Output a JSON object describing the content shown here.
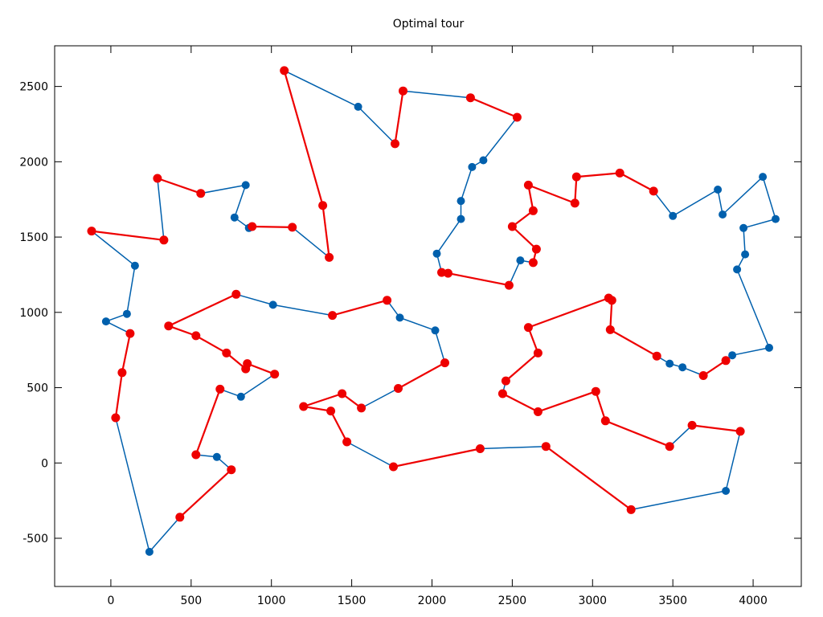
{
  "chart_data": {
    "type": "line",
    "title": "Optimal tour",
    "xlabel": "",
    "ylabel": "",
    "xlim": [
      -350,
      4300
    ],
    "ylim": [
      -820,
      2770
    ],
    "xticks": [
      0,
      500,
      1000,
      1500,
      2000,
      2500,
      3000,
      3500,
      4000
    ],
    "yticks": [
      -500,
      0,
      500,
      1000,
      1500,
      2000,
      2500
    ],
    "grid": false,
    "legend": "none",
    "colors": {
      "blue": "#0060ad",
      "red": "#ee0000"
    },
    "series": [
      {
        "color": "blue",
        "x": [
          330,
          -120,
          150,
          100,
          -30,
          120,
          70,
          30,
          240,
          430,
          750,
          660,
          530,
          680,
          810,
          1020,
          850,
          840,
          720,
          530,
          360,
          780,
          1010,
          1380,
          1720,
          1800,
          2020,
          2080,
          1790,
          1560,
          1440,
          1200,
          1370,
          1470,
          1760,
          2300,
          2710,
          3240,
          3830,
          3920,
          3620,
          3480,
          3080,
          3020,
          2660,
          2440,
          2460,
          2660,
          2600,
          3100,
          3120,
          3110,
          3400,
          3480,
          3560,
          3690,
          3830,
          3870,
          4100,
          3900,
          3950,
          3940,
          4140,
          4060,
          3810,
          3780,
          3500,
          3380,
          3170,
          2900,
          2890,
          2600,
          2630,
          2500,
          2650,
          2630,
          2550,
          2480,
          2100,
          2060,
          2030,
          2180,
          2180,
          2250,
          2320,
          2530,
          2240,
          1820,
          1770,
          1540,
          1080,
          1320,
          1360,
          1130,
          880,
          860,
          770,
          840,
          560,
          290,
          330
        ],
        "y": [
          1480,
          1540,
          1310,
          990,
          940,
          860,
          600,
          300,
          -590,
          -360,
          -45,
          40,
          55,
          490,
          440,
          590,
          660,
          625,
          730,
          845,
          910,
          1120,
          1050,
          980,
          1080,
          965,
          880,
          665,
          495,
          365,
          460,
          375,
          345,
          140,
          -25,
          95,
          110,
          -310,
          -185,
          210,
          250,
          110,
          280,
          475,
          340,
          460,
          545,
          730,
          900,
          1095,
          1080,
          885,
          710,
          660,
          635,
          580,
          680,
          715,
          765,
          1285,
          1385,
          1560,
          1620,
          1900,
          1650,
          1815,
          1640,
          1805,
          1925,
          1900,
          1725,
          1845,
          1675,
          1570,
          1420,
          1330,
          1345,
          1180,
          1260,
          1265,
          1390,
          1620,
          1740,
          1965,
          2010,
          2295,
          2425,
          2470,
          2120,
          2365,
          2605,
          1710,
          1365,
          1565,
          1570,
          1560,
          1630,
          1845,
          1790,
          1890,
          1480
        ]
      },
      {
        "color": "red",
        "x": [
          -120,
          330
        ],
        "y": [
          1540,
          1480
        ]
      },
      {
        "color": "red",
        "x": [
          290,
          560
        ],
        "y": [
          1890,
          1790
        ]
      },
      {
        "color": "red",
        "x": [
          120,
          70,
          30
        ],
        "y": [
          860,
          600,
          300
        ]
      },
      {
        "color": "red",
        "x": [
          430,
          750
        ],
        "y": [
          -360,
          -45
        ]
      },
      {
        "color": "red",
        "x": [
          530,
          680
        ],
        "y": [
          55,
          490
        ]
      },
      {
        "color": "red",
        "x": [
          1020,
          850,
          840,
          720,
          530,
          360,
          780
        ],
        "y": [
          590,
          660,
          625,
          730,
          845,
          910,
          1120
        ]
      },
      {
        "color": "red",
        "x": [
          1380,
          1720
        ],
        "y": [
          980,
          1080
        ]
      },
      {
        "color": "red",
        "x": [
          2080,
          1790
        ],
        "y": [
          665,
          495
        ]
      },
      {
        "color": "red",
        "x": [
          1560,
          1440,
          1200,
          1370,
          1470
        ],
        "y": [
          365,
          460,
          375,
          345,
          140
        ]
      },
      {
        "color": "red",
        "x": [
          1760,
          2300
        ],
        "y": [
          -25,
          95
        ]
      },
      {
        "color": "red",
        "x": [
          2710,
          3240
        ],
        "y": [
          110,
          -310
        ]
      },
      {
        "color": "red",
        "x": [
          3920,
          3620
        ],
        "y": [
          210,
          250
        ]
      },
      {
        "color": "red",
        "x": [
          3480,
          3080,
          3020,
          2660,
          2440
        ],
        "y": [
          110,
          280,
          475,
          340,
          460
        ]
      },
      {
        "color": "red",
        "x": [
          2460,
          2660,
          2600,
          3100,
          3120,
          3110,
          3400
        ],
        "y": [
          545,
          730,
          900,
          1095,
          1080,
          885,
          710
        ]
      },
      {
        "color": "red",
        "x": [
          3690,
          3830
        ],
        "y": [
          580,
          680
        ]
      },
      {
        "color": "red",
        "x": [
          3380,
          3170,
          2900,
          2890,
          2600,
          2630,
          2500,
          2650,
          2630
        ],
        "y": [
          1805,
          1925,
          1900,
          1725,
          1845,
          1675,
          1570,
          1420,
          1330
        ]
      },
      {
        "color": "red",
        "x": [
          2480,
          2100,
          2060
        ],
        "y": [
          1180,
          1260,
          1265
        ]
      },
      {
        "color": "red",
        "x": [
          2530,
          2240
        ],
        "y": [
          2295,
          2425
        ]
      },
      {
        "color": "red",
        "x": [
          1820,
          1770
        ],
        "y": [
          2470,
          2120
        ]
      },
      {
        "color": "red",
        "x": [
          1080,
          1320,
          1360
        ],
        "y": [
          2605,
          1710,
          1365
        ]
      },
      {
        "color": "red",
        "x": [
          1130,
          880
        ],
        "y": [
          1565,
          1570
        ]
      }
    ]
  }
}
